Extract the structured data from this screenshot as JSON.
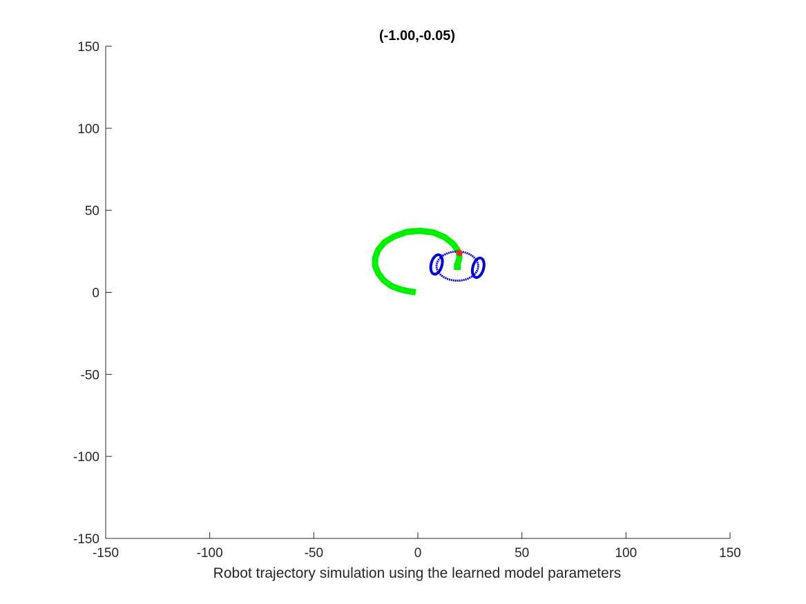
{
  "chart_data": {
    "type": "line",
    "title": "(-1.00,-0.05)",
    "xlabel": "Robot trajectory simulation using the learned model parameters",
    "ylabel": "",
    "xlim": [
      -150,
      150
    ],
    "ylim": [
      -150,
      150
    ],
    "xticks": [
      -150,
      -100,
      -50,
      0,
      50,
      100,
      150
    ],
    "yticks": [
      -150,
      -100,
      -50,
      0,
      50,
      100,
      150
    ],
    "xtick_labels": [
      "-150",
      "-100",
      "-50",
      "0",
      "50",
      "100",
      "150"
    ],
    "ytick_labels": [
      "-150",
      "-100",
      "-50",
      "0",
      "50",
      "100",
      "150"
    ],
    "grid": false,
    "legend": "none",
    "series": [
      {
        "kind": "trajectory",
        "color": "#00ee00",
        "x": [
          -1,
          -5,
          -9,
          -13,
          -16.5,
          -19,
          -20.5,
          -20.5,
          -19,
          -16,
          -11.5,
          -5.5,
          1,
          7.5,
          13,
          17,
          19.5,
          20,
          19.5,
          19
        ],
        "y": [
          0,
          0.8,
          2,
          4,
          7.5,
          11.5,
          16,
          21,
          26,
          30.5,
          34,
          36.8,
          37.5,
          36.5,
          33.5,
          29.5,
          25,
          21.5,
          19,
          17
        ]
      },
      {
        "kind": "robot-body",
        "color": "#0000cc",
        "cx": 19,
        "cy": 16,
        "rx": 10,
        "ry": 7
      },
      {
        "kind": "left-wheel",
        "color": "#0000cc",
        "cx": 9,
        "cy": 17,
        "rx": 2.6,
        "ry": 4.8
      },
      {
        "kind": "right-wheel",
        "color": "#0000cc",
        "cx": 29,
        "cy": 15,
        "rx": 2.6,
        "ry": 4.8
      },
      {
        "kind": "heading-marker",
        "color": "#ff2020",
        "x": 20,
        "y": 24
      }
    ]
  }
}
